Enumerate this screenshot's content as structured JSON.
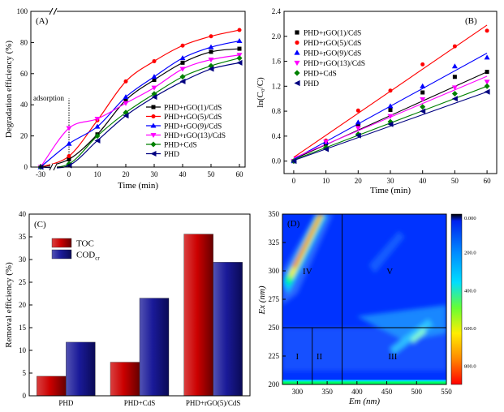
{
  "chart_data": [
    {
      "panel": "(A)",
      "type": "line",
      "xlabel": "Time (min)",
      "ylabel": "Degradation efficiency (%)",
      "x_ticks": [
        "-30",
        "0",
        "10",
        "20",
        "30",
        "40",
        "50",
        "60"
      ],
      "y_ticks": [
        "0",
        "20",
        "40",
        "60",
        "80",
        "100"
      ],
      "ylim": [
        0,
        100
      ],
      "annotation": "adsorption",
      "legend_position": "bottom-right",
      "x": [
        -30,
        0,
        10,
        20,
        30,
        40,
        50,
        60
      ],
      "series": [
        {
          "name": "PHD+rGO(1)/CdS",
          "color": "#000000",
          "marker": "square",
          "values": [
            0,
            5,
            21,
            43,
            56,
            67,
            74,
            76
          ]
        },
        {
          "name": "PHD+rGO(5)/CdS",
          "color": "#ff0000",
          "marker": "circle",
          "values": [
            0,
            7,
            30,
            55,
            68,
            78,
            84,
            88
          ]
        },
        {
          "name": "PHD+rGO(9)/CdS",
          "color": "#0000ff",
          "marker": "triangle-up",
          "values": [
            0,
            15,
            26,
            45,
            58,
            70,
            77,
            81
          ]
        },
        {
          "name": "PHD+rGO(13)/CdS",
          "color": "#ff00ff",
          "marker": "triangle-down",
          "values": [
            0,
            25,
            31,
            41,
            51,
            63,
            69,
            72
          ]
        },
        {
          "name": "PHD+CdS",
          "color": "#008000",
          "marker": "diamond",
          "values": [
            0,
            2,
            20,
            35,
            47,
            58,
            65,
            70
          ]
        },
        {
          "name": "PHD",
          "color": "#000080",
          "marker": "triangle-left",
          "values": [
            0,
            1,
            17,
            33,
            45,
            55,
            63,
            67
          ]
        }
      ]
    },
    {
      "panel": "(B)",
      "type": "scatter",
      "xlabel": "Time (min)",
      "ylabel": "ln(C₀/C)",
      "x_ticks": [
        "0",
        "10",
        "20",
        "30",
        "40",
        "50",
        "60"
      ],
      "y_ticks": [
        "0.0",
        "0.4",
        "0.8",
        "1.2",
        "1.6",
        "2.0",
        "2.4"
      ],
      "xlim": [
        -3,
        63
      ],
      "ylim": [
        -0.2,
        2.4
      ],
      "legend_position": "top-left",
      "x": [
        0,
        10,
        20,
        30,
        40,
        50,
        60
      ],
      "series": [
        {
          "name": "PHD+rGO(1)/CdS",
          "color": "#000000",
          "marker": "square",
          "values": [
            0,
            0.28,
            0.58,
            0.82,
            1.1,
            1.35,
            1.43
          ]
        },
        {
          "name": "PHD+rGO(5)/CdS",
          "color": "#ff0000",
          "marker": "circle",
          "values": [
            0,
            0.33,
            0.81,
            1.13,
            1.55,
            1.84,
            2.09
          ]
        },
        {
          "name": "PHD+rGO(9)/CdS",
          "color": "#0000ff",
          "marker": "triangle-up",
          "values": [
            0,
            0.3,
            0.62,
            0.88,
            1.2,
            1.52,
            1.66
          ]
        },
        {
          "name": "PHD+rGO(13)/CdS",
          "color": "#ff00ff",
          "marker": "triangle-down",
          "values": [
            0,
            0.31,
            0.53,
            0.72,
            0.99,
            1.18,
            1.27
          ]
        },
        {
          "name": "PHD+CdS",
          "color": "#008000",
          "marker": "diamond",
          "values": [
            0,
            0.22,
            0.43,
            0.63,
            0.87,
            1.08,
            1.2
          ]
        },
        {
          "name": "PHD",
          "color": "#000080",
          "marker": "triangle-left",
          "values": [
            0,
            0.19,
            0.41,
            0.59,
            0.8,
            1.0,
            1.11
          ]
        }
      ],
      "fits": [
        {
          "color": "#000000",
          "y0": 0.03,
          "y60": 1.43
        },
        {
          "color": "#ff0000",
          "y0": 0.06,
          "y60": 2.18
        },
        {
          "color": "#0000ff",
          "y0": 0.03,
          "y60": 1.73
        },
        {
          "color": "#ff00ff",
          "y0": 0.05,
          "y60": 1.36
        },
        {
          "color": "#008000",
          "y0": 0.02,
          "y60": 1.2
        },
        {
          "color": "#000080",
          "y0": 0.01,
          "y60": 1.11
        }
      ]
    },
    {
      "panel": "(C)",
      "type": "bar",
      "ylabel": "Removal efficiency (%)",
      "categories": [
        "PHD",
        "PHD+CdS",
        "PHD+rGO(5)/CdS"
      ],
      "y_ticks": [
        "0",
        "5",
        "10",
        "15",
        "20",
        "25",
        "30",
        "35",
        "40"
      ],
      "ylim": [
        0,
        40
      ],
      "legend_position": "top-left",
      "series": [
        {
          "name": "TOC",
          "color": "#cc0000",
          "values": [
            4.3,
            7.4,
            35.6
          ]
        },
        {
          "name": "COD",
          "name_sub": "cr",
          "color": "#1a1a99",
          "values": [
            11.8,
            21.5,
            29.4
          ]
        }
      ]
    },
    {
      "panel": "(D)",
      "type": "heatmap",
      "xlabel": "Em (nm)",
      "ylabel": "Ex (nm)",
      "x_ticks": [
        "300",
        "350",
        "400",
        "450",
        "500",
        "550"
      ],
      "y_ticks": [
        "200",
        "225",
        "250",
        "275",
        "300",
        "325",
        "350"
      ],
      "xlim": [
        275,
        550
      ],
      "ylim": [
        200,
        350
      ],
      "regions": [
        "I",
        "II",
        "III",
        "IV",
        "V"
      ],
      "colorbar_labels": [
        "0.000",
        "200.0",
        "400.0",
        "600.0",
        "800.0"
      ],
      "colorbar_range": [
        0,
        900
      ],
      "colors": {
        "low": "#0033ff",
        "mid1": "#00c8ff",
        "mid2": "#00ff66",
        "high1": "#ffee00",
        "high2": "#ff4400",
        "peak": "#ff0000"
      }
    }
  ]
}
